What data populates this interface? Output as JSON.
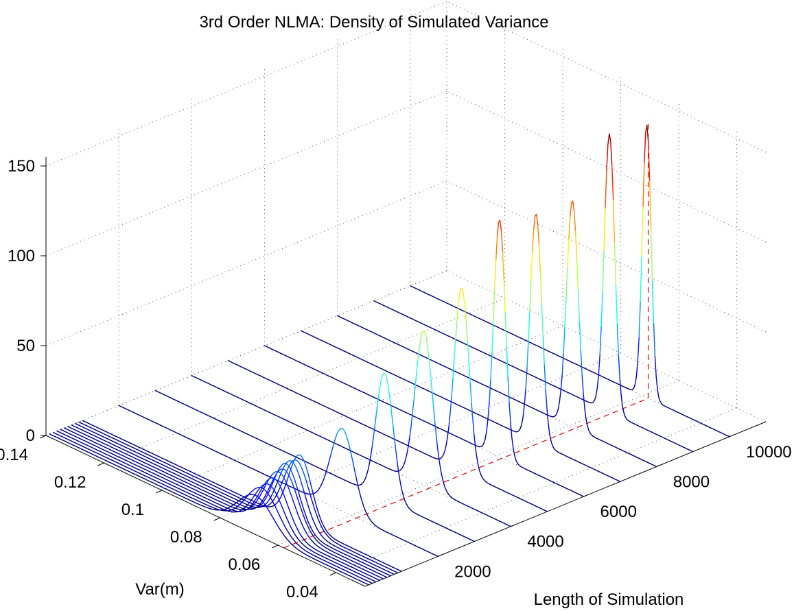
{
  "chart_data": {
    "type": "line",
    "view": "3d-waterfall",
    "title": "3rd Order NLMA: Density of Simulated Variance",
    "xlabel": "Var(m)",
    "ylabel": "Length of Simulation",
    "zlabel": "",
    "xlim": [
      0.03,
      0.14
    ],
    "ylim": [
      0,
      11000
    ],
    "zlim": [
      0,
      155
    ],
    "x_ticks": [
      "0.04",
      "0.06",
      "0.08",
      "0.1",
      "0.12",
      "0.14"
    ],
    "y_ticks": [
      "2000",
      "4000",
      "6000",
      "8000",
      "10000"
    ],
    "z_ticks": [
      "0",
      "50",
      "100",
      "150"
    ],
    "grid": true,
    "colormap": "jet",
    "grid_color": "#555555",
    "reference_line_color": "#dd0000",
    "reference_line": {
      "x": 0.058,
      "y_from": 0,
      "y_to": 10000,
      "z_top": 155
    },
    "density_shape": "gaussian",
    "series": [
      {
        "length": 100,
        "mean": 0.069,
        "sd": 0.006,
        "peak": 20
      },
      {
        "length": 200,
        "mean": 0.068,
        "sd": 0.0055,
        "peak": 24
      },
      {
        "length": 300,
        "mean": 0.067,
        "sd": 0.005,
        "peak": 26
      },
      {
        "length": 400,
        "mean": 0.0665,
        "sd": 0.0048,
        "peak": 29
      },
      {
        "length": 500,
        "mean": 0.066,
        "sd": 0.005,
        "peak": 32
      },
      {
        "length": 600,
        "mean": 0.0655,
        "sd": 0.0048,
        "peak": 33
      },
      {
        "length": 700,
        "mean": 0.066,
        "sd": 0.0045,
        "peak": 35
      },
      {
        "length": 800,
        "mean": 0.0655,
        "sd": 0.0045,
        "peak": 36
      },
      {
        "length": 900,
        "mean": 0.065,
        "sd": 0.0045,
        "peak": 36
      },
      {
        "length": 1000,
        "mean": 0.065,
        "sd": 0.004,
        "peak": 38
      },
      {
        "length": 2000,
        "mean": 0.063,
        "sd": 0.004,
        "peak": 46
      },
      {
        "length": 3000,
        "mean": 0.061,
        "sd": 0.003,
        "peak": 70
      },
      {
        "length": 4000,
        "mean": 0.06,
        "sd": 0.003,
        "peak": 86
      },
      {
        "length": 5000,
        "mean": 0.0595,
        "sd": 0.0025,
        "peak": 102
      },
      {
        "length": 6000,
        "mean": 0.059,
        "sd": 0.002,
        "peak": 132
      },
      {
        "length": 7000,
        "mean": 0.059,
        "sd": 0.002,
        "peak": 127
      },
      {
        "length": 8000,
        "mean": 0.059,
        "sd": 0.002,
        "peak": 126
      },
      {
        "length": 9000,
        "mean": 0.0588,
        "sd": 0.0018,
        "peak": 155
      },
      {
        "length": 10000,
        "mean": 0.0585,
        "sd": 0.0015,
        "peak": 152
      }
    ]
  }
}
